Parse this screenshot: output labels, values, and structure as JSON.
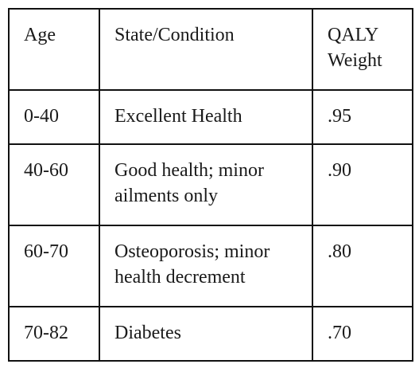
{
  "table": {
    "header": {
      "age": "Age",
      "state": "State/Condition",
      "weight_line1": "QALY",
      "weight_line2": "Weight"
    },
    "rows": [
      {
        "age": "0-40",
        "state_line1": "Excellent Health",
        "state_line2": "",
        "weight": ".95"
      },
      {
        "age": "40-60",
        "state_line1": "Good health; minor",
        "state_line2": "ailments only",
        "weight": ".90"
      },
      {
        "age": "60-70",
        "state_line1": "Osteoporosis; minor",
        "state_line2": "health decrement",
        "weight": ".80"
      },
      {
        "age": "70-82",
        "state_line1": "Diabetes",
        "state_line2": "",
        "weight": ".70"
      }
    ]
  }
}
